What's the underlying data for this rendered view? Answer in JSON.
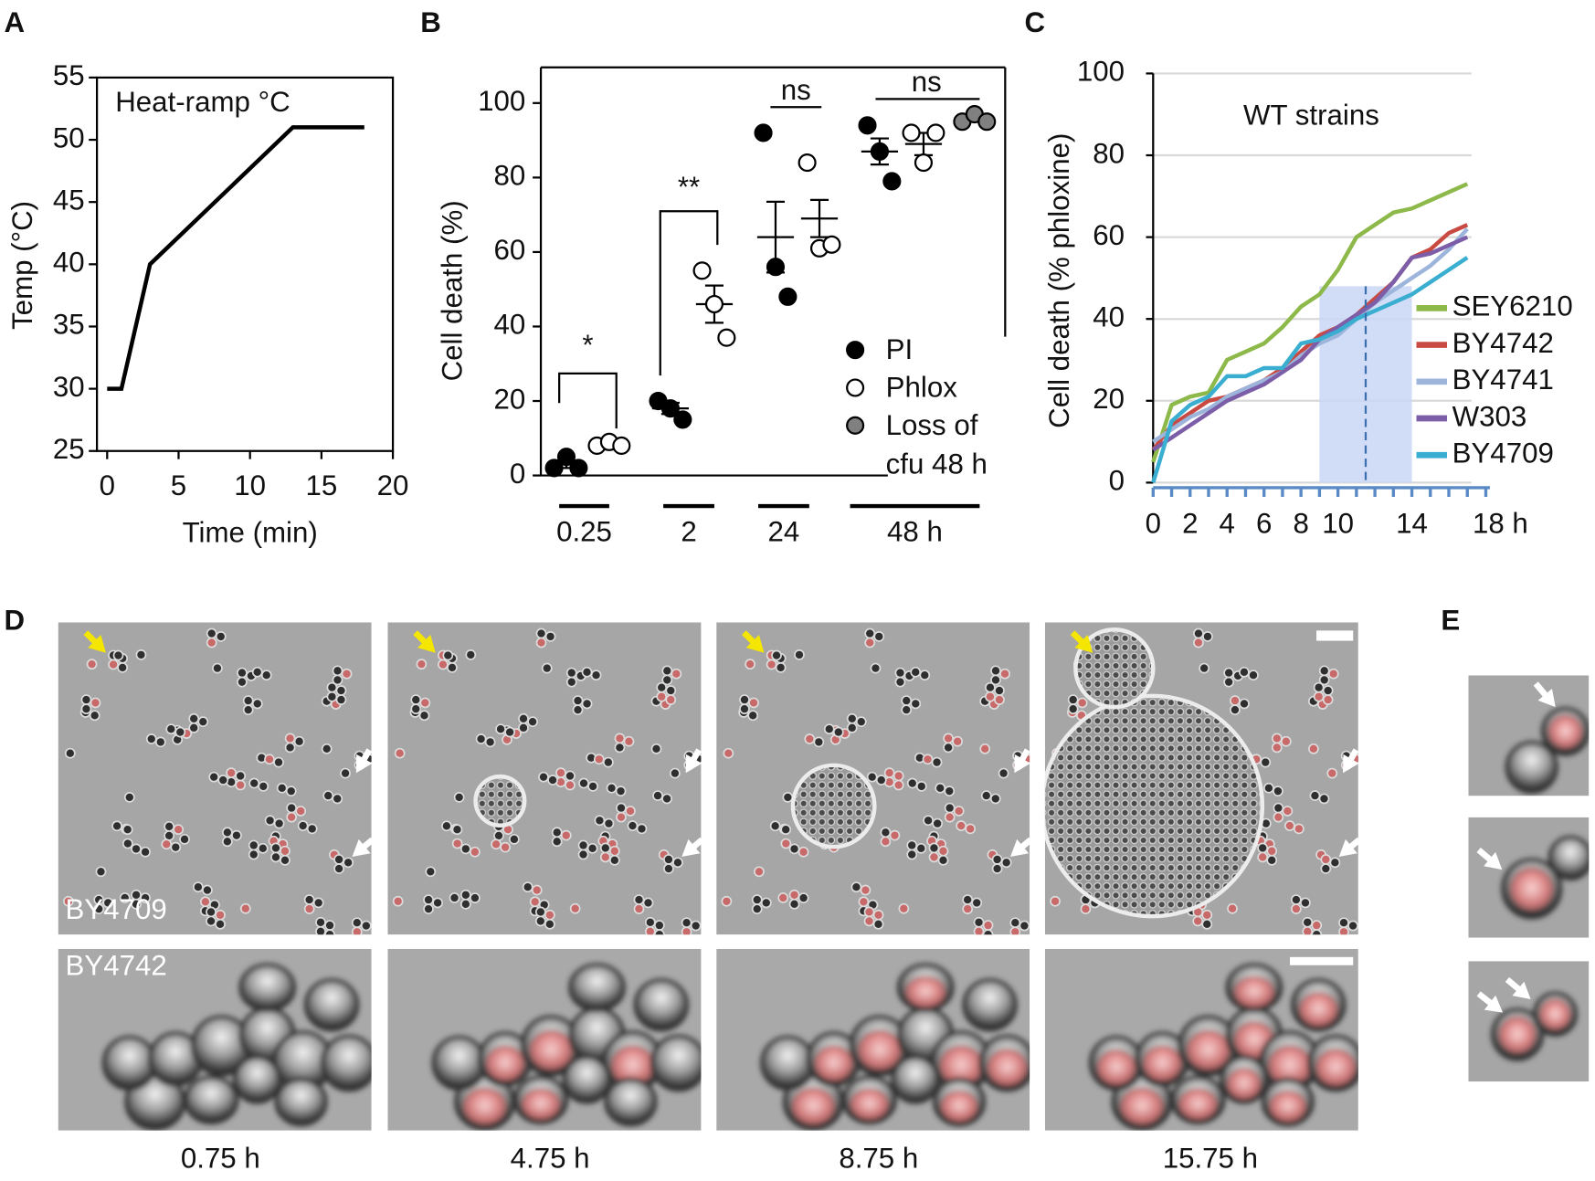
{
  "panel_labels": [
    "A",
    "B",
    "C",
    "D",
    "E"
  ],
  "chart_data": [
    {
      "type": "line",
      "annotation": "Heat-ramp °C",
      "x_label": "Time (min)",
      "y_label": "Temp (°C)",
      "x": [
        0,
        1,
        3,
        13,
        18
      ],
      "values": [
        30,
        30,
        40,
        51,
        51
      ],
      "color": "#000000",
      "xlim": [
        0,
        20
      ],
      "ylim": [
        25,
        55
      ],
      "xticks": [
        0,
        5,
        10,
        15,
        20
      ],
      "yticks": [
        25,
        30,
        35,
        40,
        45,
        50,
        55
      ]
    },
    {
      "type": "dot",
      "y_label": "Cell death (%)",
      "categories": [
        "0.25",
        "2",
        "24",
        "48 h"
      ],
      "series": [
        {
          "name": "PI",
          "color": "#000000",
          "values": [
            [
              2,
              5,
              2
            ],
            [
              20,
              18,
              15
            ],
            [
              92,
              56,
              48
            ],
            [
              94,
              87,
              79
            ]
          ],
          "means": [
            3,
            18,
            64,
            87
          ],
          "errors": [
            1,
            1.5,
            9.5,
            3.5
          ]
        },
        {
          "name": "Phlox",
          "color": "#ffffff",
          "values": [
            [
              8,
              9,
              8
            ],
            [
              55,
              46,
              37
            ],
            [
              84,
              61,
              62
            ],
            [
              92,
              84,
              92
            ]
          ],
          "means": [
            8,
            46,
            69,
            89
          ],
          "errors": [
            1,
            5,
            5,
            3
          ]
        },
        {
          "name": "Loss of cfu 48 h",
          "color": "#808080",
          "values": [
            null,
            null,
            null,
            [
              95,
              97,
              95
            ]
          ],
          "means": [
            null,
            null,
            null,
            96
          ],
          "errors": [
            null,
            null,
            null,
            1
          ]
        }
      ],
      "annotations": [
        "*",
        "**",
        "ns",
        "ns"
      ],
      "ylim": [
        0,
        100
      ],
      "yticks": [
        0,
        20,
        40,
        60,
        80,
        100
      ]
    },
    {
      "type": "line",
      "annotation": "WT strains",
      "y_label": "Cell death (% phloxine)",
      "x": [
        0,
        1,
        2,
        3,
        4,
        5,
        6,
        7,
        8,
        9,
        10,
        11,
        12,
        13,
        14,
        15,
        16,
        17
      ],
      "series": [
        {
          "name": "SEY6210",
          "color": "#8db84a",
          "values": [
            5,
            19,
            21,
            22,
            30,
            32,
            34,
            38,
            43,
            46,
            52,
            60,
            63,
            66,
            67,
            69,
            71,
            73
          ]
        },
        {
          "name": "BY4742",
          "color": "#c94a43",
          "values": [
            8,
            14,
            17,
            20,
            21,
            23,
            25,
            28,
            32,
            36,
            38,
            41,
            45,
            49,
            55,
            57,
            61,
            63
          ]
        },
        {
          "name": "BY4741",
          "color": "#9db5db",
          "values": [
            10,
            13,
            16,
            18,
            21,
            23,
            25,
            27,
            31,
            34,
            36,
            40,
            44,
            47,
            50,
            53,
            57,
            62
          ]
        },
        {
          "name": "W303",
          "color": "#7c5da8",
          "values": [
            8,
            11,
            14,
            17,
            20,
            22,
            24,
            27,
            30,
            35,
            38,
            41,
            44,
            49,
            55,
            56,
            58,
            60
          ]
        },
        {
          "name": "BY4709",
          "color": "#3aaed0",
          "values": [
            0,
            15,
            19,
            21,
            26,
            26,
            28,
            28,
            34,
            35,
            37,
            40,
            42,
            44,
            46,
            49,
            52,
            55
          ]
        }
      ],
      "xlim": [
        0,
        18
      ],
      "ylim": [
        0,
        100
      ],
      "xticks": [
        0,
        2,
        4,
        6,
        8,
        10,
        14,
        {
          "value": 18,
          "label": "18 h"
        }
      ],
      "xminorticks": [
        1,
        3,
        5,
        7,
        9,
        11,
        12,
        13,
        15,
        16,
        17
      ],
      "yticks": [
        0,
        20,
        40,
        60,
        80,
        100
      ],
      "grid": true,
      "legend": "right",
      "highlight": {
        "x": [
          9,
          14
        ],
        "top": 48,
        "line": 11.5
      }
    }
  ],
  "panel_d": {
    "rows": [
      "BY4709",
      "BY4742"
    ],
    "times": [
      "0.75 h",
      "4.75 h",
      "8.75 h",
      "15.75 h"
    ]
  }
}
